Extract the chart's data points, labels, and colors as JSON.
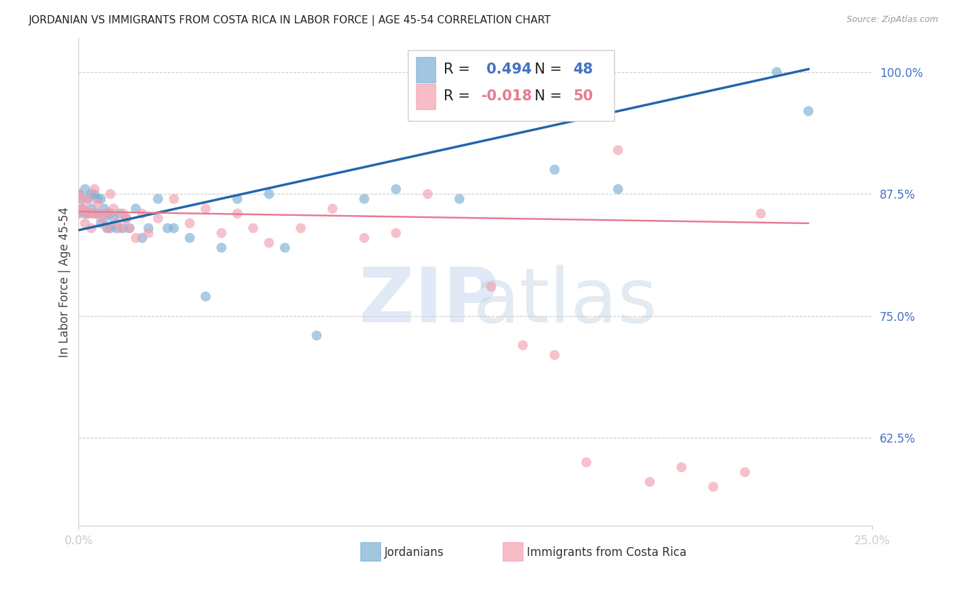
{
  "title": "JORDANIAN VS IMMIGRANTS FROM COSTA RICA IN LABOR FORCE | AGE 45-54 CORRELATION CHART",
  "source": "Source: ZipAtlas.com",
  "ylabel_label": "In Labor Force | Age 45-54",
  "xlim": [
    0.0,
    0.25
  ],
  "ylim": [
    0.535,
    1.035
  ],
  "ytick_positions": [
    0.625,
    0.75,
    0.875,
    1.0
  ],
  "ytick_labels": [
    "62.5%",
    "75.0%",
    "87.5%",
    "100.0%"
  ],
  "xtick_positions": [
    0.0,
    0.25
  ],
  "xtick_labels": [
    "0.0%",
    "25.0%"
  ],
  "blue_R": 0.494,
  "blue_N": 48,
  "pink_R": -0.018,
  "pink_N": 50,
  "blue_color": "#7bafd4",
  "pink_color": "#f4a0b0",
  "blue_line_color": "#2166ac",
  "pink_line_color": "#e87a90",
  "legend_label_blue": "Jordanians",
  "legend_label_pink": "Immigrants from Costa Rica",
  "blue_scatter_x": [
    0.0,
    0.0,
    0.001,
    0.001,
    0.002,
    0.002,
    0.003,
    0.003,
    0.004,
    0.004,
    0.005,
    0.005,
    0.006,
    0.006,
    0.007,
    0.007,
    0.008,
    0.008,
    0.009,
    0.009,
    0.01,
    0.01,
    0.011,
    0.012,
    0.013,
    0.014,
    0.015,
    0.016,
    0.018,
    0.02,
    0.022,
    0.025,
    0.028,
    0.03,
    0.035,
    0.04,
    0.045,
    0.05,
    0.06,
    0.065,
    0.075,
    0.09,
    0.1,
    0.12,
    0.15,
    0.17,
    0.22,
    0.23
  ],
  "blue_scatter_y": [
    0.875,
    0.855,
    0.87,
    0.86,
    0.88,
    0.855,
    0.87,
    0.855,
    0.86,
    0.875,
    0.875,
    0.855,
    0.87,
    0.855,
    0.87,
    0.845,
    0.86,
    0.85,
    0.855,
    0.84,
    0.855,
    0.84,
    0.85,
    0.84,
    0.855,
    0.84,
    0.85,
    0.84,
    0.86,
    0.83,
    0.84,
    0.87,
    0.84,
    0.84,
    0.83,
    0.77,
    0.82,
    0.87,
    0.875,
    0.82,
    0.73,
    0.87,
    0.88,
    0.87,
    0.9,
    0.88,
    1.0,
    0.96
  ],
  "pink_scatter_x": [
    0.0,
    0.0,
    0.001,
    0.001,
    0.002,
    0.002,
    0.003,
    0.003,
    0.004,
    0.004,
    0.005,
    0.005,
    0.006,
    0.007,
    0.008,
    0.009,
    0.01,
    0.01,
    0.011,
    0.012,
    0.013,
    0.014,
    0.015,
    0.016,
    0.018,
    0.02,
    0.022,
    0.025,
    0.03,
    0.035,
    0.04,
    0.045,
    0.05,
    0.055,
    0.06,
    0.07,
    0.08,
    0.09,
    0.1,
    0.11,
    0.13,
    0.14,
    0.15,
    0.16,
    0.17,
    0.18,
    0.19,
    0.2,
    0.21,
    0.215
  ],
  "pink_scatter_y": [
    0.875,
    0.855,
    0.87,
    0.86,
    0.86,
    0.845,
    0.87,
    0.855,
    0.855,
    0.84,
    0.88,
    0.855,
    0.865,
    0.85,
    0.855,
    0.84,
    0.875,
    0.855,
    0.86,
    0.845,
    0.84,
    0.855,
    0.85,
    0.84,
    0.83,
    0.855,
    0.835,
    0.85,
    0.87,
    0.845,
    0.86,
    0.835,
    0.855,
    0.84,
    0.825,
    0.84,
    0.86,
    0.83,
    0.835,
    0.875,
    0.78,
    0.72,
    0.71,
    0.6,
    0.92,
    0.58,
    0.595,
    0.575,
    0.59,
    0.855
  ],
  "blue_line_x0": 0.0,
  "blue_line_x1": 0.23,
  "blue_line_y0": 0.838,
  "blue_line_y1": 1.003,
  "pink_line_x0": 0.0,
  "pink_line_x1": 0.23,
  "pink_line_y0": 0.857,
  "pink_line_y1": 0.845
}
